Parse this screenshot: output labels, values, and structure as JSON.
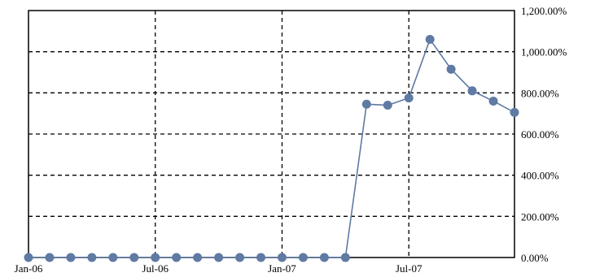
{
  "chart_data": {
    "type": "line",
    "title": "",
    "xlabel": "",
    "ylabel": "",
    "x_tick_labels": [
      "Jan-06",
      "Jul-06",
      "Jan-07",
      "Jul-07"
    ],
    "y_tick_labels": [
      "0.00%",
      "200.00%",
      "400.00%",
      "600.00%",
      "800.00%",
      "1,000.00%",
      "1,200.00%"
    ],
    "y_ticks": [
      0,
      200,
      400,
      600,
      800,
      1000,
      1200
    ],
    "ylim": [
      0,
      1200
    ],
    "xlim": [
      "2006-01",
      "2007-12"
    ],
    "y_axis_position": "right",
    "grid": true,
    "legend": "none",
    "series": [
      {
        "color": "#5f7aa3",
        "x": [
          "2006-01",
          "2006-02",
          "2006-03",
          "2006-04",
          "2006-05",
          "2006-06",
          "2006-07",
          "2006-08",
          "2006-09",
          "2006-10",
          "2006-11",
          "2006-12",
          "2007-01",
          "2007-02",
          "2007-03",
          "2007-04",
          "2007-05",
          "2007-06",
          "2007-07",
          "2007-08",
          "2007-09",
          "2007-10",
          "2007-11",
          "2007-12"
        ],
        "values": [
          0,
          0,
          0,
          0,
          0,
          0,
          0,
          0,
          0,
          0,
          0,
          0,
          0,
          0,
          0,
          0,
          745,
          740,
          775,
          1060,
          915,
          810,
          760,
          705
        ]
      }
    ]
  }
}
